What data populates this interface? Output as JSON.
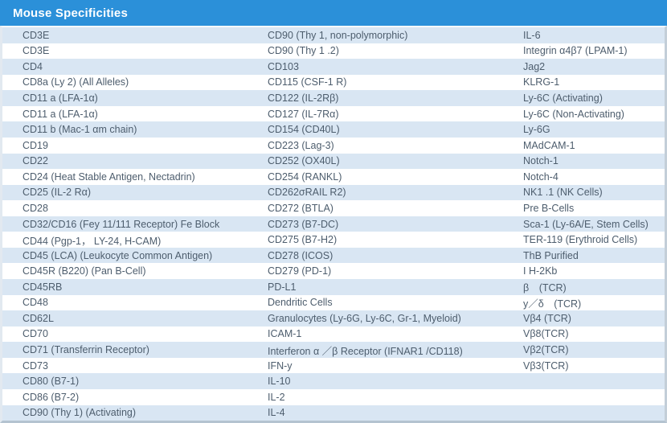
{
  "header": {
    "title": "Mouse Specificities"
  },
  "colors": {
    "header_background": "#2b90d9",
    "header_text": "#ffffff",
    "row_alt_blue": "#d9e6f3",
    "row_white": "#ffffff",
    "cell_text": "#4d5d6d",
    "outer_border": "#b4c3d0"
  },
  "table": {
    "columns": 3,
    "rows": [
      {
        "c1": "CD3E",
        "c2": "CD90 (Thy 1, non-polymorphic)",
        "c3": "IL-6"
      },
      {
        "c1": "CD3E",
        "c2": "CD90 (Thy 1 .2)",
        "c3": "Integrin α4β7 (LPAM-1)"
      },
      {
        "c1": "CD4",
        "c2": "CD103",
        "c3": "Jag2"
      },
      {
        "c1": "CD8a (Ly 2) (All Alleles)",
        "c2": "CD115 (CSF-1 R)",
        "c3": "KLRG-1"
      },
      {
        "c1": "CD11 a (LFA-1α)",
        "c2": "CD122 (IL-2Rβ)",
        "c3": "Ly-6C (Activating)"
      },
      {
        "c1": "CD11 a (LFA-1α)",
        "c2": "CD127 (IL-7Rα)",
        "c3": "Ly-6C (Non-Activating)"
      },
      {
        "c1": "CD11 b (Mac-1 αm chain)",
        "c2": "CD154 (CD40L)",
        "c3": "Ly-6G"
      },
      {
        "c1": "CD19",
        "c2": "CD223 (Lag-3)",
        "c3": "MAdCAM-1"
      },
      {
        "c1": "CD22",
        "c2": "CD252 (OX40L)",
        "c3": "Notch-1"
      },
      {
        "c1": "CD24 (Heat Stable Antigen, Nectadrin)",
        "c2": "CD254 (RANKL)",
        "c3": "Notch-4"
      },
      {
        "c1": "CD25 (IL-2 Rα)",
        "c2": "CD262σRAIL R2)",
        "c3": "NK1 .1 (NK Cells)"
      },
      {
        "c1": "CD28",
        "c2": "CD272 (BTLA)",
        "c3": "Pre B-Cells"
      },
      {
        "c1": "CD32/CD16 (Fey 11/111 Receptor) Fe Block",
        "c2": "CD273 (B7-DC)",
        "c3": "Sca-1 (Ly-6A/E, Stem Cells)"
      },
      {
        "c1": "CD44 (Pgp-1， LY-24, H-CAM)",
        "c2": "CD275 (B7-H2)",
        "c3": "TER-119 (Erythroid Cells)"
      },
      {
        "c1": "CD45 (LCA) (Leukocyte Common Antigen)",
        "c2": "CD278 (ICOS)",
        "c3": "ThB Purified"
      },
      {
        "c1": "CD45R (B220) (Pan B-Cell)",
        "c2": "CD279 (PD-1)",
        "c3": "I H-2Kb"
      },
      {
        "c1": "CD45RB",
        "c2": "PD-L1",
        "c3": "β　(TCR)"
      },
      {
        "c1": "CD48",
        "c2": "Dendritic Cells",
        "c3": "y／δ　(TCR)"
      },
      {
        "c1": "CD62L",
        "c2": "Granulocytes (Ly-6G, Ly-6C, Gr-1, Myeloid)",
        "c3": "Vβ4 (TCR)"
      },
      {
        "c1": "CD70",
        "c2": "ICAM-1",
        "c3": "Vβ8(TCR)"
      },
      {
        "c1": "CD71 (Transferrin Receptor)",
        "c2": "Interferon α ／β Receptor (IFNAR1 /CD118)",
        "c3": "Vβ2(TCR)"
      },
      {
        "c1": "CD73",
        "c2": "IFN-y",
        "c3": "Vβ3(TCR)"
      },
      {
        "c1": "CD80 (B7-1)",
        "c2": "IL-10",
        "c3": ""
      },
      {
        "c1": "CD86 (B7-2)",
        "c2": "IL-2",
        "c3": ""
      },
      {
        "c1": "CD90 (Thy 1) (Activating)",
        "c2": "IL-4",
        "c3": ""
      }
    ]
  }
}
